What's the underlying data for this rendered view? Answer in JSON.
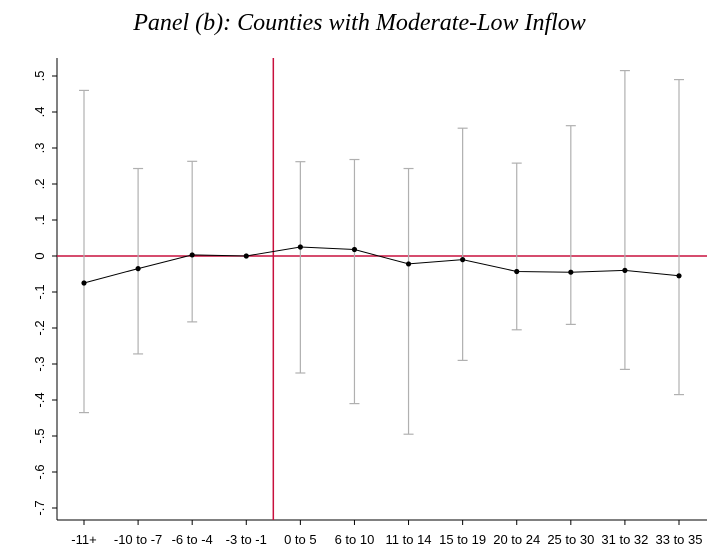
{
  "chart_data": {
    "type": "line",
    "title": "Panel (b): Counties with Moderate-Low Inflow",
    "xlabel": "",
    "ylabel": "",
    "categories": [
      "-11+",
      "-10 to -7",
      "-6 to -4",
      "-3 to -1",
      "0 to 5",
      "6 to 10",
      "11 to 14",
      "15 to 19",
      "20 to 24",
      "25 to 30",
      "31 to 32",
      "33 to 35"
    ],
    "series": [
      {
        "values": [
          -0.075,
          -0.035,
          0.003,
          0.0,
          0.025,
          0.018,
          -0.022,
          -0.01,
          -0.043,
          -0.045,
          -0.04,
          -0.055
        ],
        "ci_upper": [
          0.46,
          0.243,
          0.263,
          null,
          0.262,
          0.268,
          0.243,
          0.355,
          0.258,
          0.362,
          0.515,
          0.49
        ],
        "ci_lower": [
          -0.435,
          -0.272,
          -0.183,
          null,
          -0.325,
          -0.41,
          -0.495,
          -0.29,
          -0.205,
          -0.19,
          -0.315,
          -0.385
        ]
      }
    ],
    "yticks": [
      ".5",
      ".4",
      ".3",
      ".2",
      ".1",
      "0",
      "-.1",
      "-.2",
      "-.3",
      "-.4",
      "-.5",
      "-.6",
      "-.7"
    ],
    "ylim": [
      -0.72,
      0.55
    ],
    "reference_lines": {
      "horizontal_y": 0,
      "vertical_between": [
        "-3 to -1",
        "0 to 5"
      ]
    },
    "grid": false,
    "colors": {
      "line": "#000000",
      "ci": "#b0b0b0",
      "reference": "#c8103e",
      "axis": "#000000"
    }
  }
}
